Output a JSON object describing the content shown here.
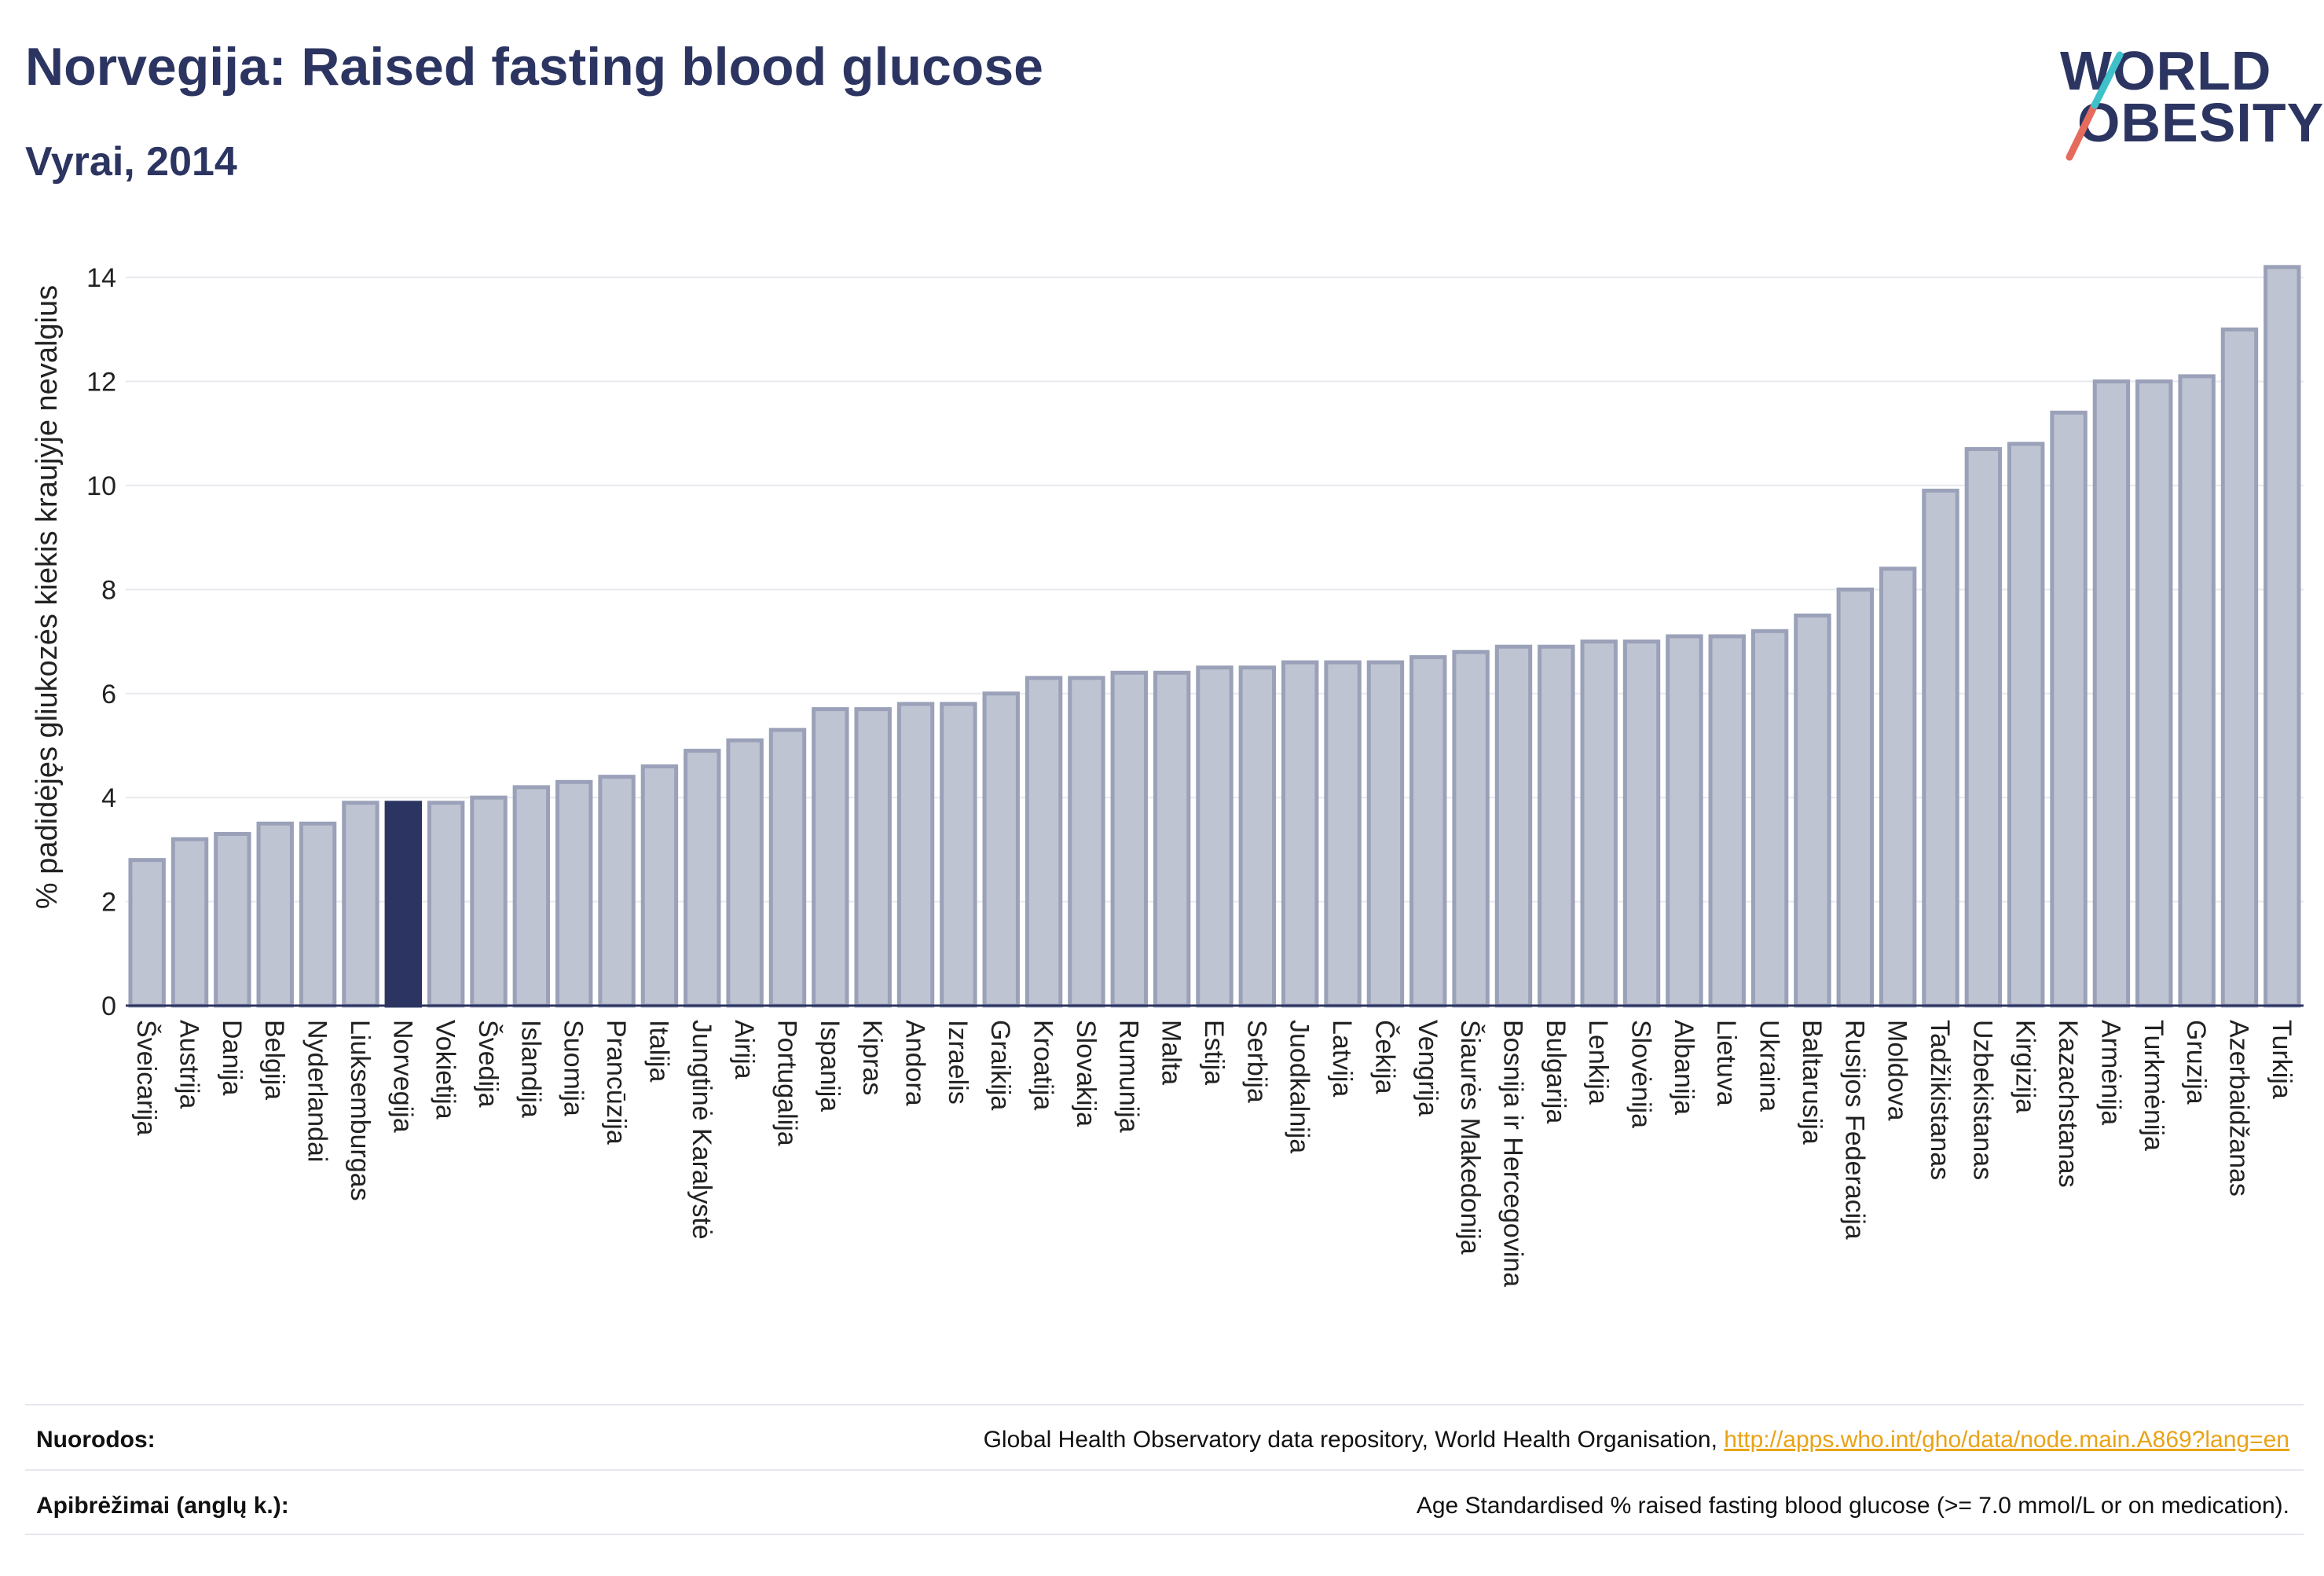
{
  "header": {
    "title": "Norvegija: Raised fasting blood glucose",
    "subtitle": "Vyrai, 2014"
  },
  "logo": {
    "line1": "WORLD",
    "line2": "OBESITY",
    "accent_colors": [
      "#3ec1c9",
      "#e56b5d"
    ]
  },
  "colors": {
    "bar": "#bfc4d3",
    "bar_border": "#9aa1b8",
    "highlight": "#2c3561",
    "grid": "#e8e9ee",
    "axis": "#2c3561"
  },
  "chart_data": {
    "type": "bar",
    "ylabel": "% padidėjęs gliukozės kiekis kraujyje nevalgius",
    "xlabel": "",
    "ylim": [
      0,
      14.5
    ],
    "yticks": [
      0,
      2,
      4,
      6,
      8,
      10,
      12,
      14
    ],
    "grid": true,
    "highlight": "Norvegija",
    "categories": [
      "Šveicarija",
      "Austrija",
      "Danija",
      "Belgija",
      "Nyderlandai",
      "Liuksemburgas",
      "Norvegija",
      "Vokietija",
      "Švedija",
      "Islandija",
      "Suomija",
      "Prancūzija",
      "Italija",
      "Jungtinė Karalystė",
      "Airija",
      "Portugalija",
      "Ispanija",
      "Kipras",
      "Andora",
      "Izraelis",
      "Graikija",
      "Kroatija",
      "Slovakija",
      "Rumunija",
      "Malta",
      "Estija",
      "Serbija",
      "Juodkalnija",
      "Latvija",
      "Čekija",
      "Vengrija",
      "Šiaurės Makedonija",
      "Bosnija ir Hercegovina",
      "Bulgarija",
      "Lenkija",
      "Slovėnija",
      "Albanija",
      "Lietuva",
      "Ukraina",
      "Baltarusija",
      "Rusijos Federacija",
      "Moldova",
      "Tadžikistanas",
      "Uzbekistanas",
      "Kirgizija",
      "Kazachstanas",
      "Armėnija",
      "Turkmėnija",
      "Gruzija",
      "Azerbaidžanas",
      "Turkija"
    ],
    "values": [
      2.8,
      3.2,
      3.3,
      3.5,
      3.5,
      3.9,
      3.9,
      3.9,
      4.0,
      4.2,
      4.3,
      4.4,
      4.6,
      4.9,
      5.1,
      5.3,
      5.7,
      5.7,
      5.8,
      5.8,
      6.0,
      6.3,
      6.3,
      6.4,
      6.4,
      6.5,
      6.5,
      6.6,
      6.6,
      6.6,
      6.7,
      6.8,
      6.9,
      6.9,
      7.0,
      7.0,
      7.1,
      7.1,
      7.2,
      7.5,
      8.0,
      8.4,
      9.9,
      10.7,
      10.8,
      11.4,
      12.0,
      12.0,
      12.1,
      13.0,
      14.2
    ]
  },
  "footer": {
    "sources_label": "Nuorodos:",
    "sources_text": "Global Health Observatory data repository, World Health Organisation, ",
    "sources_link": "http://apps.who.int/gho/data/node.main.A869?lang=en",
    "definitions_label": "Apibrėžimai (anglų k.):",
    "definitions_text": "Age Standardised % raised fasting blood glucose (>= 7.0 mmol/L or on medication)."
  }
}
